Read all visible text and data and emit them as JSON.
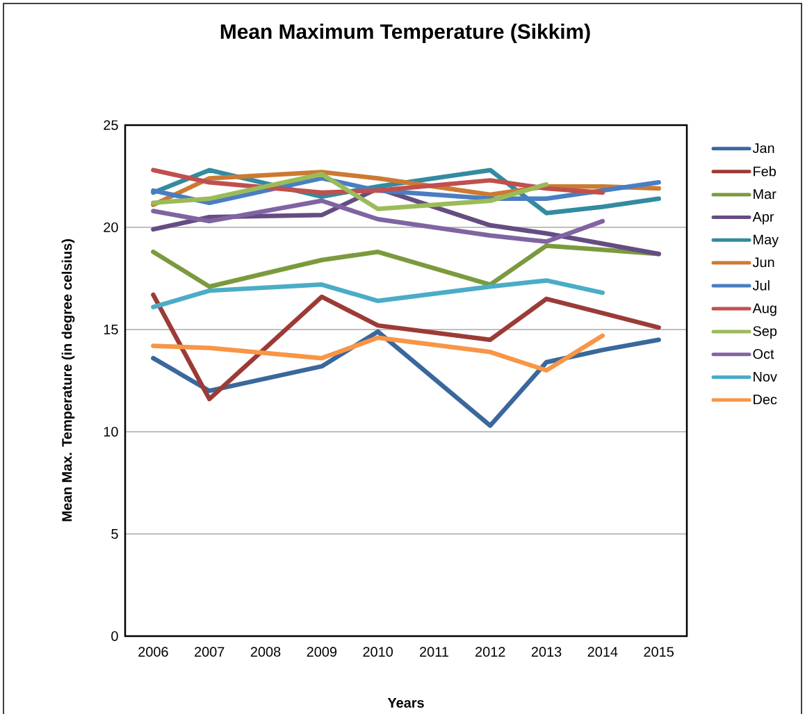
{
  "chart_data": {
    "type": "line",
    "title": "Mean Maximum Temperature (Sikkim)",
    "xlabel": "Years",
    "ylabel": "Mean Max. Temperature (in degree celsius)",
    "categories": [
      "2006",
      "2007",
      "2008",
      "2009",
      "2010",
      "2011",
      "2012",
      "2013",
      "2014",
      "2015"
    ],
    "ylim": [
      0,
      25
    ],
    "yticks": [
      0,
      5,
      10,
      15,
      20,
      25
    ],
    "grid": "y",
    "legend": "right",
    "marker": "none",
    "line_style": "solid",
    "series": [
      {
        "name": "Jan",
        "color": "#3a679c",
        "values": [
          13.6,
          12.0,
          null,
          13.2,
          14.9,
          null,
          10.3,
          13.4,
          14.0,
          14.5
        ]
      },
      {
        "name": "Feb",
        "color": "#9c3b36",
        "values": [
          16.7,
          11.6,
          null,
          16.6,
          15.2,
          null,
          14.5,
          16.5,
          15.8,
          15.1
        ]
      },
      {
        "name": "Mar",
        "color": "#7b9a3e",
        "values": [
          18.8,
          17.1,
          null,
          18.4,
          18.8,
          null,
          17.2,
          19.1,
          18.9,
          18.7
        ]
      },
      {
        "name": "Apr",
        "color": "#654d82",
        "values": [
          19.9,
          20.5,
          null,
          20.6,
          21.9,
          null,
          20.1,
          19.7,
          19.2,
          18.7
        ]
      },
      {
        "name": "May",
        "color": "#338b9f",
        "values": [
          21.7,
          22.8,
          null,
          21.5,
          22.0,
          null,
          22.8,
          20.7,
          21.0,
          21.4
        ]
      },
      {
        "name": "Jun",
        "color": "#cc7a33",
        "values": [
          21.1,
          22.4,
          null,
          22.7,
          22.4,
          null,
          21.6,
          22.0,
          22.0,
          21.9
        ]
      },
      {
        "name": "Jul",
        "color": "#4a7ec2",
        "values": [
          21.8,
          21.2,
          null,
          22.4,
          21.8,
          null,
          21.4,
          21.4,
          21.8,
          22.2
        ]
      },
      {
        "name": "Aug",
        "color": "#c0504d",
        "values": [
          22.8,
          22.2,
          null,
          21.7,
          21.8,
          null,
          22.3,
          21.9,
          21.7,
          null
        ]
      },
      {
        "name": "Sep",
        "color": "#9bbb59",
        "values": [
          21.2,
          21.4,
          null,
          22.6,
          20.9,
          null,
          21.3,
          22.1,
          null,
          null
        ]
      },
      {
        "name": "Oct",
        "color": "#8064a2",
        "values": [
          20.8,
          20.3,
          null,
          21.3,
          20.4,
          null,
          19.6,
          19.3,
          20.3,
          null
        ]
      },
      {
        "name": "Nov",
        "color": "#4bacc6",
        "values": [
          16.1,
          16.9,
          null,
          17.2,
          16.4,
          null,
          17.1,
          17.4,
          16.8,
          null
        ]
      },
      {
        "name": "Dec",
        "color": "#f79646",
        "values": [
          14.2,
          14.1,
          null,
          13.6,
          14.6,
          null,
          13.9,
          13.0,
          14.7,
          null
        ]
      }
    ]
  }
}
